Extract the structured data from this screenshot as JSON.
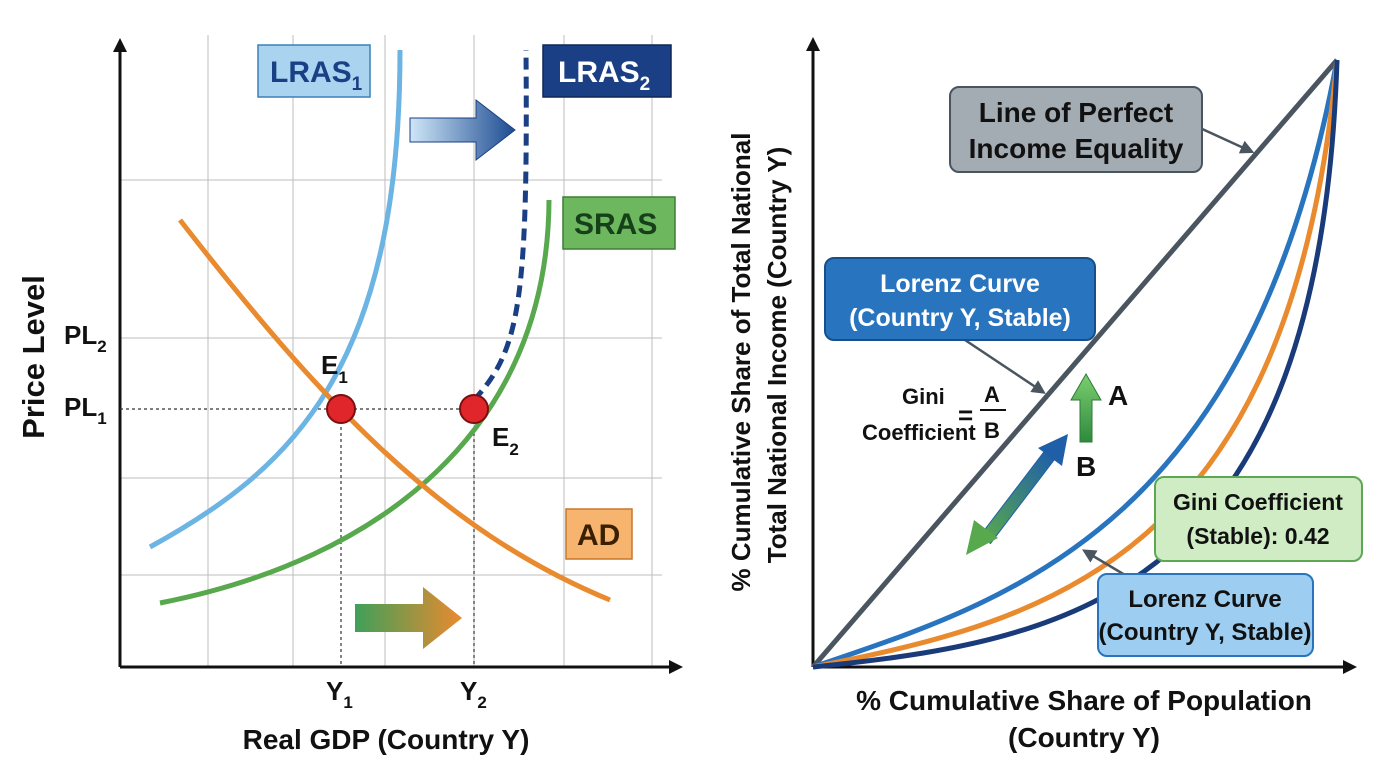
{
  "colors": {
    "lras1": "#6cb4e4",
    "lras2": "#1a3f85",
    "sras": "#58a84e",
    "ad": "#ea8a2e",
    "equality": "#4a5560",
    "lorenz_blue": "#2874bf",
    "lorenz_navy": "#1a3b7a",
    "lorenz_orange": "#ea8a2e",
    "equilibrium": "#e0262b"
  },
  "left": {
    "y_axis_label": "Price Level",
    "x_axis_label": "Real GDP (Country Y)",
    "pl2": {
      "main": "PL",
      "sub": "2"
    },
    "pl1": {
      "main": "PL",
      "sub": "1"
    },
    "y1": {
      "main": "Y",
      "sub": "1"
    },
    "y2": {
      "main": "Y",
      "sub": "2"
    },
    "lras1": {
      "main": "LRAS",
      "sub": "1"
    },
    "lras2": {
      "main": "LRAS",
      "sub": "2"
    },
    "sras": "SRAS",
    "ad": "AD",
    "e1": {
      "main": "E",
      "sub": "1"
    },
    "e2": {
      "main": "E",
      "sub": "2"
    }
  },
  "right": {
    "y_axis_label_line1": "% Cumulative Share of Total National",
    "y_axis_label_line2": "Total National Income (Country Y)",
    "x_axis_label_line1": "% Cumulative Share of Population",
    "x_axis_label_line2": "(Country Y)",
    "equality_line1": "Line of Perfect",
    "equality_line2": "Income Equality",
    "lorenz_top_line1": "Lorenz Curve",
    "lorenz_top_line2": "(Country Y, Stable)",
    "lorenz_bottom_line1": "Lorenz Curve",
    "lorenz_bottom_line2": "(Country Y, Stable)",
    "gini_box_line1": "Gini Coefficient",
    "gini_box_line2": "(Stable): 0.42",
    "gini_formula_word1": "Gini",
    "gini_formula_word2": "Coefficient",
    "gini_equals": "=",
    "gini_numerator": "A",
    "gini_denominator": "B",
    "area_a": "A",
    "area_b": "B"
  }
}
